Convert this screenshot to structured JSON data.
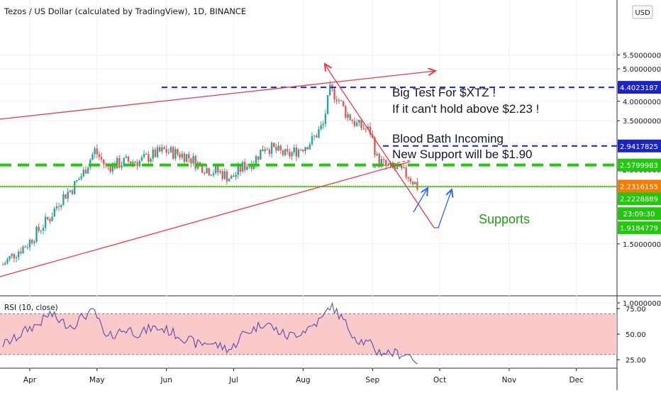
{
  "header": {
    "title": "Tezos / US Dollar (calculated by TradingView), 1D, BINANCE",
    "currency_button": "USD"
  },
  "annotations": {
    "line1": "Big Test For $XTZ !",
    "line2": "If it can't hold above $2.23 !",
    "line3": "Blood Bath Incoming",
    "line4": "New Support will be $1.90",
    "supports_label": "Supports"
  },
  "price_axis": {
    "ticks": [
      "5.5000000",
      "5.0000000",
      "4.5000000",
      "4.0000000",
      "3.5000000",
      "3.0000000",
      "2.5000000",
      "2.0000000",
      "1.5000000",
      "1.0000000"
    ],
    "scale": "log"
  },
  "price_badges": [
    {
      "id": "badge-4.40",
      "text": "4.4023187",
      "value": 4.4023187,
      "color": "#1a23c4"
    },
    {
      "id": "badge-2.94",
      "text": "2.9417825",
      "value": 2.9417825,
      "color": "#1a23c4"
    },
    {
      "id": "badge-2.58",
      "text": "2.5799983",
      "value": 2.5799983,
      "color": "#22c70e"
    },
    {
      "id": "badge-2.23a",
      "text": "2.2316155",
      "value": 2.2316155,
      "color": "#f57c00"
    },
    {
      "id": "badge-2.22",
      "text": "2.2228889",
      "value": 2.2228889,
      "color": "#22c70e"
    },
    {
      "id": "badge-time",
      "text": "23:09:30",
      "value": 2.03,
      "color": "#22c70e"
    },
    {
      "id": "badge-1.91",
      "text": "1.9184779",
      "value": 1.9184779,
      "color": "#22c70e"
    }
  ],
  "rsi": {
    "label": "RSI (10, close)",
    "ticks": [
      "75.00",
      "50.00",
      "25.00"
    ],
    "band_upper": 70,
    "band_lower": 30
  },
  "time_axis": {
    "labels": [
      "Apr",
      "May",
      "Jun",
      "Jul",
      "Aug",
      "Sep",
      "Oct",
      "Nov",
      "Dec"
    ]
  },
  "chart_data": {
    "type": "candlestick",
    "title": "Tezos / US Dollar (calculated by TradingView), 1D, BINANCE",
    "x": [
      "2020-03-20",
      "2020-03-25",
      "2020-03-31",
      "2020-04-05",
      "2020-04-10",
      "2020-04-15",
      "2020-04-20",
      "2020-04-25",
      "2020-04-30",
      "2020-05-05",
      "2020-05-10",
      "2020-05-15",
      "2020-05-20",
      "2020-05-25",
      "2020-05-31",
      "2020-06-05",
      "2020-06-10",
      "2020-06-15",
      "2020-06-20",
      "2020-06-25",
      "2020-06-30",
      "2020-07-05",
      "2020-07-10",
      "2020-07-15",
      "2020-07-20",
      "2020-07-25",
      "2020-07-31",
      "2020-08-05",
      "2020-08-10",
      "2020-08-13",
      "2020-08-16",
      "2020-08-20",
      "2020-08-25",
      "2020-08-31",
      "2020-09-03",
      "2020-09-07",
      "2020-09-12",
      "2020-09-17",
      "2020-09-21"
    ],
    "close": [
      1.3,
      1.4,
      1.5,
      1.65,
      1.8,
      2.05,
      2.2,
      2.45,
      2.85,
      2.55,
      2.6,
      2.65,
      2.65,
      2.75,
      2.85,
      2.8,
      2.75,
      2.6,
      2.5,
      2.45,
      2.35,
      2.55,
      2.65,
      2.95,
      2.85,
      2.75,
      2.9,
      3.05,
      3.4,
      4.3,
      4.15,
      3.7,
      3.4,
      3.25,
      2.7,
      2.55,
      2.5,
      2.4,
      2.23
    ],
    "rsi": [
      40,
      45,
      55,
      60,
      70,
      62,
      58,
      68,
      72,
      45,
      52,
      55,
      50,
      56,
      55,
      50,
      45,
      40,
      42,
      38,
      35,
      50,
      55,
      62,
      54,
      48,
      52,
      58,
      66,
      78,
      72,
      60,
      45,
      40,
      33,
      32,
      31,
      30,
      24
    ],
    "levels": [
      {
        "name": "resistance",
        "value": 4.4023187
      },
      {
        "name": "level",
        "value": 2.9417825
      },
      {
        "name": "support",
        "value": 2.5799983
      },
      {
        "name": "support",
        "value": 2.2316155
      },
      {
        "name": "support",
        "value": 2.2228889
      },
      {
        "name": "projected support",
        "value": 1.9184779
      }
    ],
    "ylim": [
      0.9,
      5.6
    ],
    "y_scale": "log",
    "grid": true
  },
  "colors": {
    "up": "#26a69a",
    "down": "#ef5350",
    "resistance": "#1a23c4",
    "support_green": "#22c70e",
    "support_orange": "#f57c00",
    "trend_red": "#f23645",
    "arrow_blue": "#2962ff",
    "rsi_line": "#5b4ba8",
    "rsi_band": "#f8b8b8"
  }
}
